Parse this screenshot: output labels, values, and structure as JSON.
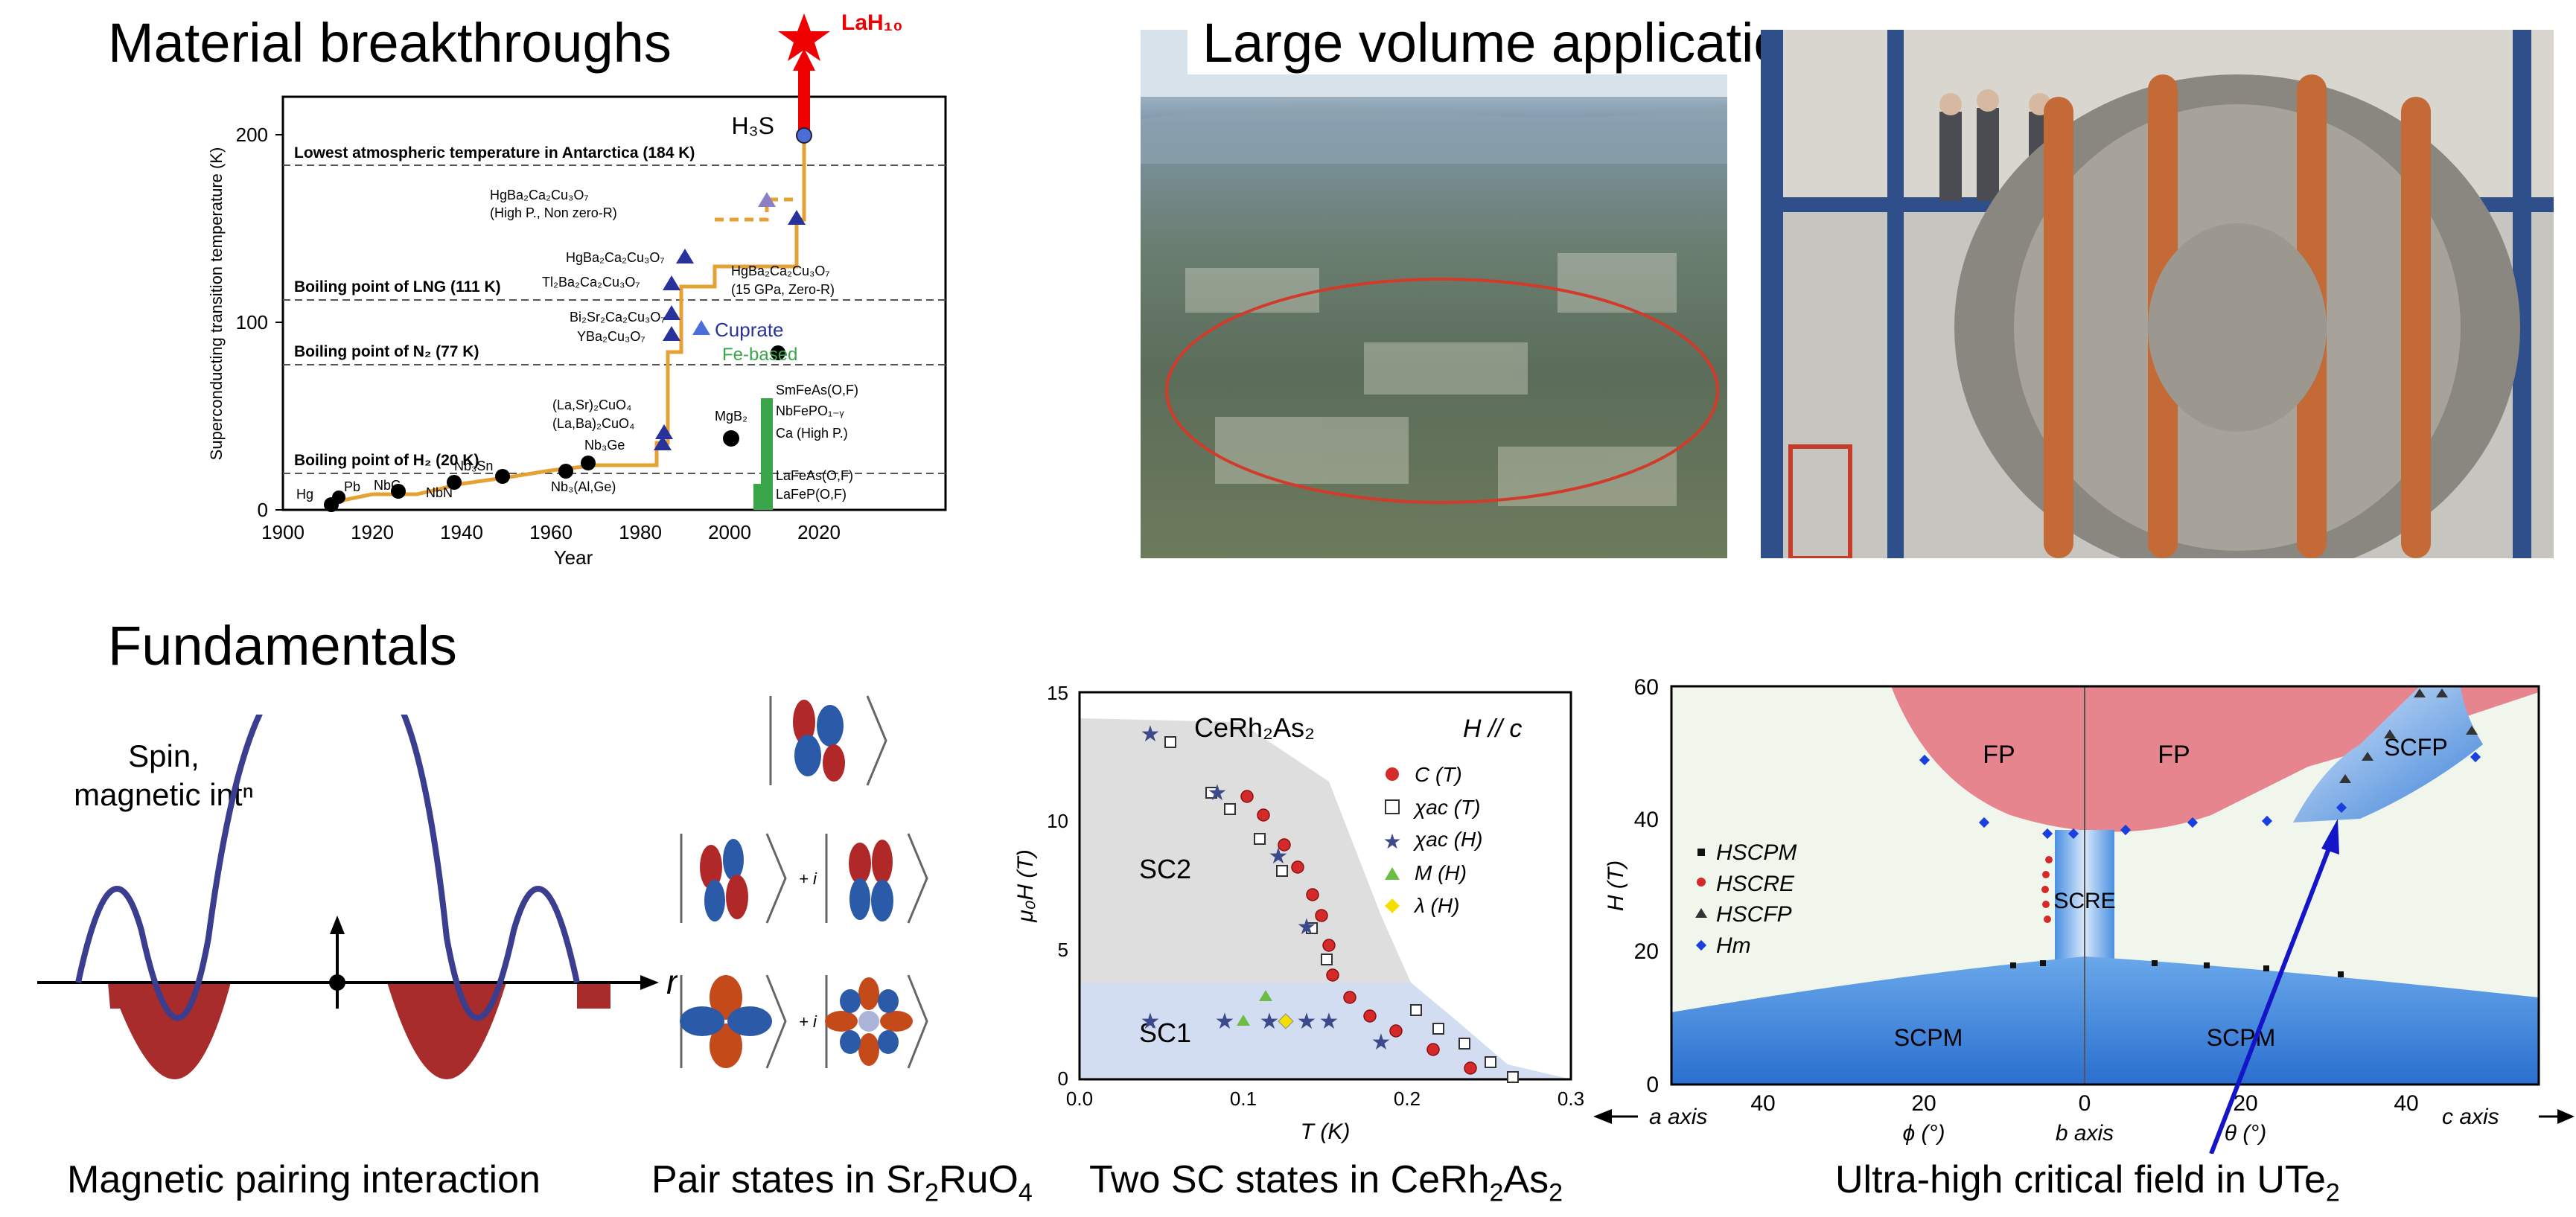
{
  "sections": {
    "material": "Material breakthroughs",
    "large_volume": "Large volume applications",
    "fundamentals": "Fundamentals"
  },
  "captions": {
    "magnetic": "Magnetic pairing interaction",
    "pair_states_pre": "Pair states in Sr",
    "pair_states_s1": "2",
    "pair_states_mid": "RuO",
    "pair_states_s2": "4",
    "two_sc_pre": "Two SC states in CeRh",
    "two_sc_s1": "2",
    "two_sc_mid": "As",
    "two_sc_s2": "2",
    "ute_pre": "Ultra-high critical field in UTe",
    "ute_s1": "2"
  },
  "tc_chart": {
    "ylabel": "Superconducting transition temperature (K)",
    "xlabel": "Year",
    "xticks": [
      "1900",
      "1920",
      "1940",
      "1960",
      "1980",
      "2000",
      "2020"
    ],
    "yticks": [
      "0",
      "100",
      "200"
    ],
    "lines": [
      {
        "label": "Lowest atmospheric temperature in Antarctica (184 K)",
        "value": 184
      },
      {
        "label": "Boiling point of LNG (111 K)",
        "value": 111
      },
      {
        "label": "Boiling point of N₂ (77 K)",
        "value": 77
      },
      {
        "label": "Boiling point of H₂ (20 K)",
        "value": 20
      }
    ],
    "legend_cuprate": "Cuprate",
    "legend_fe": "Fe-based",
    "h3s": "H₃S",
    "lah10": "LaH₁₀",
    "compounds": [
      "Hg",
      "Pb",
      "NbC",
      "NbN",
      "Nb₃Sn",
      "Nb₃(Al,Ge)",
      "Nb₃Ge",
      "(La,Sr)₂CuO₄",
      "(La,Ba)₂CuO₄",
      "YBa₂Cu₃O₇",
      "Bi₂Sr₂Ca₂Cu₃O₇",
      "Tl₂Ba₂Ca₂Cu₃O₇",
      "HgBa₂Ca₂Cu₃O₇",
      "HgBa₂Ca₂Cu₃O₇",
      "(High P., Non zero-R)",
      "HgBa₂Ca₂Cu₃O₇",
      "(15 GPa, Zero-R)",
      "MgB₂",
      "SmFeAs(O,F)",
      "NbFePO₁₋ᵧ",
      "Ca (High P.)",
      "LaFeAs(O,F)",
      "LaFeP(O,F)"
    ]
  },
  "pairing": {
    "spin_line1": "Spin,",
    "spin_line2": "magnetic intⁿ",
    "r_label": "r",
    "i1": "+ i",
    "i2": "+ i"
  },
  "cerh_chart": {
    "title": "CeRh₂As₂",
    "field_dir": "H // c",
    "ylabel": "μ₀H (T)",
    "xlabel": "T (K)",
    "xticks": [
      "0.0",
      "0.1",
      "0.2",
      "0.3"
    ],
    "yticks": [
      "0",
      "5",
      "10",
      "15"
    ],
    "sc1": "SC1",
    "sc2": "SC2",
    "legend": [
      "C (T)",
      "χac (T)",
      "χac (H)",
      "M (H)",
      "λ (H)"
    ]
  },
  "ute_chart": {
    "ylabel": "H (T)",
    "yticks": [
      "0",
      "20",
      "40",
      "60"
    ],
    "xticks": [
      "40",
      "20",
      "0",
      "20",
      "40"
    ],
    "axis_a": "a axis",
    "axis_phi": "ϕ (°)",
    "axis_b": "b axis",
    "axis_theta": "θ (°)",
    "axis_c": "c axis",
    "fp1": "FP",
    "fp2": "FP",
    "sc_fp": "SCFP",
    "sc_re": "SCRE",
    "sc_pm1": "SCPM",
    "sc_pm2": "SCPM",
    "legend": [
      "HSCPM",
      "HSCRE",
      "HSCFP",
      "Hm"
    ]
  }
}
